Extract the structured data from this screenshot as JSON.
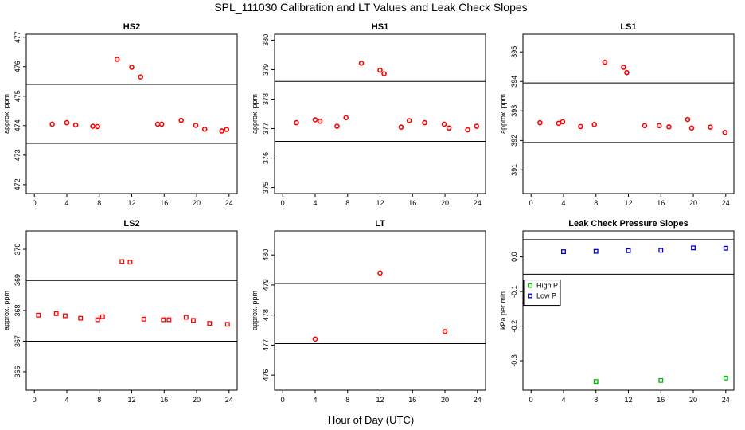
{
  "title": "SPL_111030  Calibration and LT Values and Leak Check Slopes",
  "x_axis_label": "Hour of Day (UTC)",
  "chart_data": [
    {
      "type": "scatter",
      "title": "HS2",
      "ylabel": "approx. ppm",
      "xlim": [
        -1,
        25
      ],
      "xticks": [
        0,
        4,
        8,
        12,
        16,
        20,
        24
      ],
      "ylim": [
        471.7,
        477.1
      ],
      "yticks": [
        472,
        473,
        474,
        475,
        476,
        477
      ],
      "hlines": [
        473.4,
        475.4
      ],
      "series": [
        {
          "name": "HS2",
          "color": "#ff0000",
          "marker": "circle",
          "x": [
            2.2,
            4.0,
            5.1,
            7.2,
            7.8,
            10.2,
            12.0,
            13.1,
            15.2,
            15.7,
            18.1,
            19.9,
            21.0,
            23.1,
            23.7
          ],
          "y": [
            474.05,
            474.1,
            474.02,
            473.98,
            473.97,
            476.25,
            475.98,
            475.65,
            474.05,
            474.05,
            474.18,
            474.01,
            473.88,
            473.82,
            473.87
          ]
        }
      ]
    },
    {
      "type": "scatter",
      "title": "HS1",
      "ylabel": "approx. ppm",
      "xlim": [
        -1,
        25
      ],
      "xticks": [
        0,
        4,
        8,
        12,
        16,
        20,
        24
      ],
      "ylim": [
        374.8,
        380.2
      ],
      "yticks": [
        375,
        376,
        377,
        378,
        379,
        380
      ],
      "hlines": [
        376.57,
        378.6
      ],
      "series": [
        {
          "name": "HS1",
          "color": "#ff0000",
          "marker": "circle",
          "x": [
            1.7,
            4.0,
            4.6,
            6.7,
            7.8,
            9.7,
            12.0,
            12.5,
            14.6,
            15.6,
            17.5,
            19.9,
            20.5,
            22.8,
            23.9
          ],
          "y": [
            377.2,
            377.3,
            377.25,
            377.08,
            377.37,
            379.22,
            378.98,
            378.86,
            377.05,
            377.27,
            377.2,
            377.15,
            377.02,
            376.96,
            377.08
          ]
        }
      ]
    },
    {
      "type": "scatter",
      "title": "LS1",
      "ylabel": "approx. ppm",
      "xlim": [
        -1,
        25
      ],
      "xticks": [
        0,
        4,
        8,
        12,
        16,
        20,
        24
      ],
      "ylim": [
        390.2,
        395.6
      ],
      "yticks": [
        391,
        392,
        393,
        394,
        395
      ],
      "hlines": [
        391.93,
        393.95
      ],
      "series": [
        {
          "name": "LS1",
          "color": "#ff0000",
          "marker": "circle",
          "x": [
            1.1,
            3.4,
            3.9,
            6.1,
            7.8,
            9.1,
            11.4,
            11.8,
            14.0,
            15.8,
            17.0,
            19.3,
            19.8,
            22.1,
            23.9
          ],
          "y": [
            392.6,
            392.58,
            392.63,
            392.47,
            392.54,
            394.65,
            394.48,
            394.3,
            392.5,
            392.5,
            392.46,
            392.71,
            392.42,
            392.45,
            392.27
          ]
        }
      ]
    },
    {
      "type": "scatter",
      "title": "LS2",
      "ylabel": "approx. ppm",
      "xlim": [
        -1,
        25
      ],
      "xticks": [
        0,
        4,
        8,
        12,
        16,
        20,
        24
      ],
      "ylim": [
        365.4,
        370.6
      ],
      "yticks": [
        366,
        367,
        368,
        369,
        370
      ],
      "hlines": [
        367,
        368.98
      ],
      "series": [
        {
          "name": "LS2",
          "color": "#ff0000",
          "marker": "square",
          "x": [
            0.5,
            2.7,
            3.8,
            5.7,
            7.8,
            8.4,
            10.8,
            11.8,
            13.5,
            15.9,
            16.6,
            18.7,
            19.6,
            21.6,
            23.8
          ],
          "y": [
            367.85,
            367.9,
            367.83,
            367.75,
            367.7,
            367.8,
            369.6,
            369.58,
            367.72,
            367.7,
            367.7,
            367.78,
            367.68,
            367.58,
            367.55
          ]
        }
      ]
    },
    {
      "type": "scatter",
      "title": "LT",
      "ylabel": "approx. ppm",
      "xlim": [
        -1,
        25
      ],
      "xticks": [
        0,
        4,
        8,
        12,
        16,
        20,
        24
      ],
      "ylim": [
        475.5,
        480.8
      ],
      "yticks": [
        476,
        477,
        478,
        479,
        480
      ],
      "hlines": [
        477.05,
        479.05
      ],
      "series": [
        {
          "name": "LT",
          "color": "#ff0000",
          "marker": "circle",
          "x": [
            4.0,
            12.0,
            20.0
          ],
          "y": [
            477.2,
            479.4,
            477.45
          ]
        }
      ]
    },
    {
      "type": "scatter",
      "title": "Leak Check Pressure Slopes",
      "ylabel": "kPa per min",
      "xlim": [
        -1,
        25
      ],
      "xticks": [
        0,
        4,
        8,
        12,
        16,
        20,
        24
      ],
      "ylim": [
        -0.385,
        0.075
      ],
      "yticks": [
        0.0,
        -0.1,
        -0.2,
        -0.3
      ],
      "ytick_labels": [
        "0.0",
        "-0.1",
        "-0.2",
        "-0.3"
      ],
      "hlines": [
        0.05,
        -0.05
      ],
      "legend": "left",
      "legend_box": true,
      "series": [
        {
          "name": "High P",
          "color": "#00bb00",
          "marker": "square",
          "x": [
            8.0,
            16.0,
            24.0
          ],
          "y": [
            -0.36,
            -0.357,
            -0.35
          ]
        },
        {
          "name": "Low P",
          "color": "#0000cc",
          "marker": "square",
          "x": [
            4.0,
            8.0,
            12.0,
            16.0,
            20.0,
            24.0
          ],
          "y": [
            0.015,
            0.016,
            0.018,
            0.019,
            0.026,
            0.025
          ]
        }
      ]
    }
  ]
}
